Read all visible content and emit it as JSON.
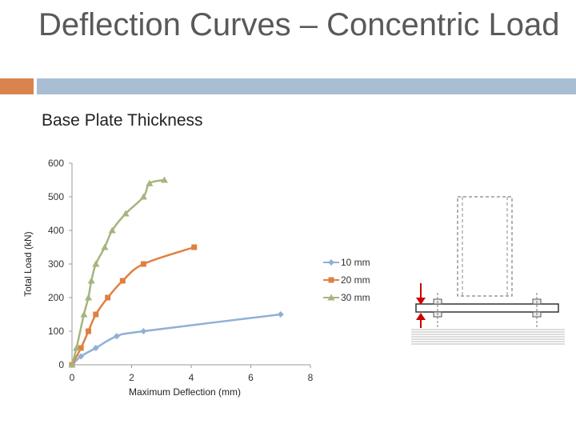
{
  "slide": {
    "title": "Deflection Curves – Concentric Load",
    "subtitle": "Base Plate Thickness"
  },
  "chart_data": {
    "type": "line",
    "title": "",
    "xlabel": "Maximum Deflection (mm)",
    "ylabel": "Total Load (kN)",
    "xlim": [
      0,
      8
    ],
    "ylim": [
      0,
      600
    ],
    "xticks": [
      "0",
      "2",
      "4",
      "6",
      "8"
    ],
    "yticks": [
      "0",
      "100",
      "200",
      "300",
      "400",
      "500",
      "600"
    ],
    "grid": false,
    "legend_position": "right",
    "series": [
      {
        "name": "10 mm",
        "color": "#8fb0d6",
        "marker": "diamond",
        "points": [
          [
            0,
            0
          ],
          [
            0.3,
            25
          ],
          [
            0.8,
            50
          ],
          [
            1.5,
            85
          ],
          [
            2.4,
            100
          ],
          [
            7,
            150
          ]
        ]
      },
      {
        "name": "20 mm",
        "color": "#e08040",
        "marker": "square",
        "points": [
          [
            0,
            0
          ],
          [
            0.3,
            50
          ],
          [
            0.55,
            100
          ],
          [
            0.8,
            150
          ],
          [
            1.2,
            200
          ],
          [
            1.7,
            250
          ],
          [
            2.4,
            300
          ],
          [
            4.1,
            350
          ]
        ]
      },
      {
        "name": "30 mm",
        "color": "#a5b57e",
        "marker": "triangle",
        "points": [
          [
            0,
            0
          ],
          [
            0.15,
            50
          ],
          [
            0.4,
            150
          ],
          [
            0.55,
            200
          ],
          [
            0.65,
            250
          ],
          [
            0.8,
            300
          ],
          [
            1.1,
            350
          ],
          [
            1.35,
            400
          ],
          [
            1.8,
            450
          ],
          [
            2.4,
            500
          ],
          [
            2.6,
            540
          ],
          [
            3.1,
            550
          ]
        ]
      }
    ]
  },
  "diagram": {
    "icon": "base-plate-column-diagram",
    "arrow_color": "#cc0000"
  }
}
